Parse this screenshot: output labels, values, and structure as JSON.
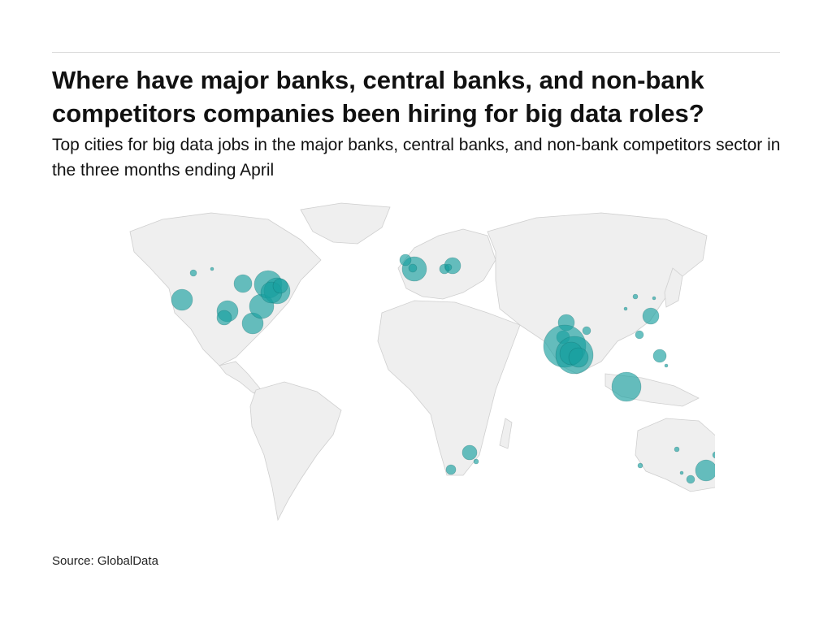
{
  "header": {
    "title": "Where have major banks, central banks, and non-bank competitors companies been hiring for big data roles?",
    "subtitle": "Top cities for big data jobs in the major banks, central banks, and non-bank competitors sector in the three months ending April"
  },
  "map": {
    "type": "bubble-map",
    "region": "world",
    "bubble_color": "#19a0a0",
    "land_color": "#efefef",
    "border_color": "#cfcfcf"
  },
  "footer": {
    "source": "Source: GlobalData"
  }
}
